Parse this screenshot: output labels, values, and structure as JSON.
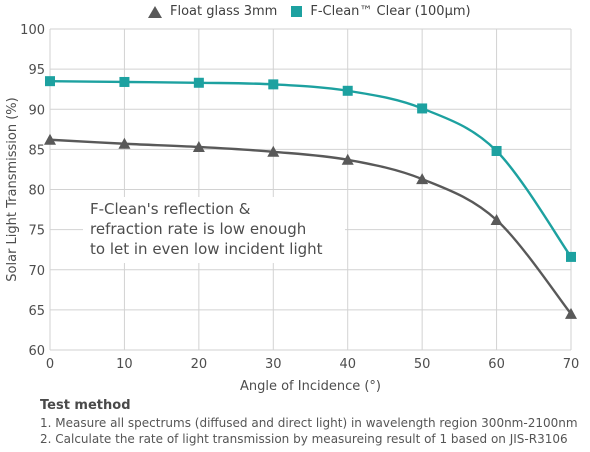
{
  "chart_data": {
    "type": "line",
    "title": "",
    "xlabel": "Angle of Incidence (°)",
    "ylabel": "Solar Light Transmission (%)",
    "xlim": [
      0,
      70
    ],
    "ylim": [
      60,
      100
    ],
    "x_ticks": [
      "0",
      "10",
      "20",
      "30",
      "40",
      "50",
      "60",
      "70"
    ],
    "y_ticks": [
      "60",
      "65",
      "70",
      "75",
      "80",
      "85",
      "90",
      "95",
      "100"
    ],
    "grid": true,
    "legend": "top",
    "x": [
      0,
      10,
      20,
      30,
      40,
      50,
      60,
      70
    ],
    "series": [
      {
        "name": "Float glass 3mm",
        "marker": "triangle",
        "color": "#595959",
        "values": [
          86.2,
          85.7,
          85.3,
          84.7,
          83.7,
          81.3,
          76.2,
          64.5
        ]
      },
      {
        "name": "F-Clean™ Clear (100μm)",
        "marker": "square",
        "color": "#1da1a0",
        "values": [
          93.5,
          93.4,
          93.3,
          93.1,
          92.3,
          90.1,
          84.8,
          71.6
        ]
      }
    ],
    "annotation": [
      "F-Clean's reflection &",
      "refraction rate is low enough",
      "to let in even low incident light"
    ]
  },
  "notes": {
    "heading": "Test method",
    "lines": [
      "1. Measure all spectrums (diffused and direct light) in wavelength region 300nm-2100nm",
      "2. Calculate the rate of light transmission by measureing result of 1 based on JIS-R3106"
    ]
  }
}
